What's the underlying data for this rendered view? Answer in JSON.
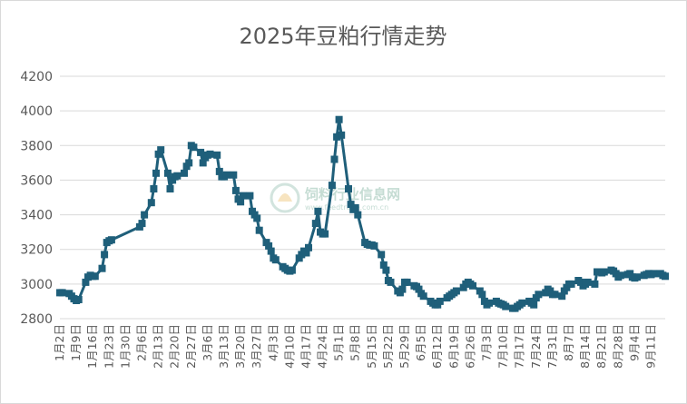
{
  "chart_data": {
    "type": "line",
    "title": "2025年豆粕行情走势",
    "xlabel": "",
    "ylabel": "",
    "ylim": [
      2800,
      4200
    ],
    "yticks": [
      2800,
      3000,
      3200,
      3400,
      3600,
      3800,
      4000,
      4200
    ],
    "grid": "horizontal",
    "legend": "none",
    "line_color": "#1f5f7a",
    "marker": "square",
    "x_tick_labels": [
      "1月2日",
      "1月9日",
      "1月16日",
      "1月23日",
      "1月30日",
      "2月6日",
      "2月13日",
      "2月20日",
      "2月27日",
      "3月6日",
      "3月13日",
      "3月20日",
      "3月27日",
      "4月3日",
      "4月10日",
      "4月17日",
      "4月24日",
      "5月1日",
      "5月8日",
      "5月15日",
      "5月22日",
      "5月29日",
      "6月5日",
      "6月12日",
      "6月19日",
      "6月26日",
      "7月3日",
      "7月10日",
      "7月17日",
      "7月24日",
      "7月31日",
      "8月7日",
      "8月14日",
      "8月21日",
      "8月28日",
      "9月4日",
      "9月11日"
    ],
    "x_start": "2025-01-02",
    "x_end": "2025-09-17",
    "points": [
      [
        "2025-01-02",
        2950
      ],
      [
        "2025-01-03",
        2950
      ],
      [
        "2025-01-06",
        2945
      ],
      [
        "2025-01-07",
        2930
      ],
      [
        "2025-01-08",
        2915
      ],
      [
        "2025-01-09",
        2905
      ],
      [
        "2025-01-10",
        2910
      ],
      [
        "2025-01-13",
        3010
      ],
      [
        "2025-01-14",
        3040
      ],
      [
        "2025-01-15",
        3050
      ],
      [
        "2025-01-16",
        3045
      ],
      [
        "2025-01-17",
        3045
      ],
      [
        "2025-01-20",
        3090
      ],
      [
        "2025-01-21",
        3170
      ],
      [
        "2025-01-22",
        3240
      ],
      [
        "2025-01-23",
        3250
      ],
      [
        "2025-01-24",
        3255
      ],
      [
        "2025-02-05",
        3330
      ],
      [
        "2025-02-06",
        3350
      ],
      [
        "2025-02-07",
        3400
      ],
      [
        "2025-02-10",
        3470
      ],
      [
        "2025-02-11",
        3550
      ],
      [
        "2025-02-12",
        3640
      ],
      [
        "2025-02-13",
        3750
      ],
      [
        "2025-02-14",
        3775
      ],
      [
        "2025-02-17",
        3640
      ],
      [
        "2025-02-18",
        3550
      ],
      [
        "2025-02-19",
        3600
      ],
      [
        "2025-02-20",
        3620
      ],
      [
        "2025-02-21",
        3625
      ],
      [
        "2025-02-24",
        3640
      ],
      [
        "2025-02-25",
        3680
      ],
      [
        "2025-02-26",
        3700
      ],
      [
        "2025-02-27",
        3800
      ],
      [
        "2025-02-28",
        3790
      ],
      [
        "2025-03-03",
        3760
      ],
      [
        "2025-03-04",
        3700
      ],
      [
        "2025-03-05",
        3730
      ],
      [
        "2025-03-06",
        3745
      ],
      [
        "2025-03-07",
        3750
      ],
      [
        "2025-03-10",
        3745
      ],
      [
        "2025-03-11",
        3650
      ],
      [
        "2025-03-12",
        3620
      ],
      [
        "2025-03-13",
        3620
      ],
      [
        "2025-03-14",
        3630
      ],
      [
        "2025-03-17",
        3630
      ],
      [
        "2025-03-18",
        3540
      ],
      [
        "2025-03-19",
        3490
      ],
      [
        "2025-03-20",
        3475
      ],
      [
        "2025-03-21",
        3510
      ],
      [
        "2025-03-24",
        3510
      ],
      [
        "2025-03-25",
        3420
      ],
      [
        "2025-03-26",
        3400
      ],
      [
        "2025-03-27",
        3380
      ],
      [
        "2025-03-28",
        3310
      ],
      [
        "2025-03-31",
        3240
      ],
      [
        "2025-04-01",
        3220
      ],
      [
        "2025-04-02",
        3190
      ],
      [
        "2025-04-03",
        3150
      ],
      [
        "2025-04-04",
        3140
      ],
      [
        "2025-04-07",
        3100
      ],
      [
        "2025-04-08",
        3090
      ],
      [
        "2025-04-09",
        3080
      ],
      [
        "2025-04-10",
        3075
      ],
      [
        "2025-04-11",
        3080
      ],
      [
        "2025-04-14",
        3150
      ],
      [
        "2025-04-15",
        3170
      ],
      [
        "2025-04-16",
        3190
      ],
      [
        "2025-04-17",
        3180
      ],
      [
        "2025-04-18",
        3210
      ],
      [
        "2025-04-21",
        3350
      ],
      [
        "2025-04-22",
        3420
      ],
      [
        "2025-04-23",
        3300
      ],
      [
        "2025-04-24",
        3290
      ],
      [
        "2025-04-25",
        3290
      ],
      [
        "2025-04-28",
        3570
      ],
      [
        "2025-04-29",
        3720
      ],
      [
        "2025-04-30",
        3850
      ],
      [
        "2025-05-01",
        3950
      ],
      [
        "2025-05-02",
        3860
      ],
      [
        "2025-05-05",
        3550
      ],
      [
        "2025-05-06",
        3460
      ],
      [
        "2025-05-07",
        3430
      ],
      [
        "2025-05-08",
        3440
      ],
      [
        "2025-05-09",
        3400
      ],
      [
        "2025-05-12",
        3240
      ],
      [
        "2025-05-13",
        3230
      ],
      [
        "2025-05-14",
        3225
      ],
      [
        "2025-05-15",
        3225
      ],
      [
        "2025-05-16",
        3220
      ],
      [
        "2025-05-19",
        3170
      ],
      [
        "2025-05-20",
        3110
      ],
      [
        "2025-05-21",
        3080
      ],
      [
        "2025-05-22",
        3020
      ],
      [
        "2025-05-23",
        3010
      ],
      [
        "2025-05-26",
        2960
      ],
      [
        "2025-05-27",
        2950
      ],
      [
        "2025-05-28",
        2970
      ],
      [
        "2025-05-29",
        3010
      ],
      [
        "2025-05-30",
        3010
      ],
      [
        "2025-06-02",
        2990
      ],
      [
        "2025-06-03",
        2985
      ],
      [
        "2025-06-04",
        2970
      ],
      [
        "2025-06-05",
        2945
      ],
      [
        "2025-06-06",
        2930
      ],
      [
        "2025-06-09",
        2900
      ],
      [
        "2025-06-10",
        2890
      ],
      [
        "2025-06-11",
        2880
      ],
      [
        "2025-06-12",
        2880
      ],
      [
        "2025-06-13",
        2900
      ],
      [
        "2025-06-16",
        2920
      ],
      [
        "2025-06-17",
        2930
      ],
      [
        "2025-06-18",
        2940
      ],
      [
        "2025-06-19",
        2950
      ],
      [
        "2025-06-20",
        2960
      ],
      [
        "2025-06-23",
        2980
      ],
      [
        "2025-06-24",
        3000
      ],
      [
        "2025-06-25",
        3010
      ],
      [
        "2025-06-26",
        3000
      ],
      [
        "2025-06-27",
        2990
      ],
      [
        "2025-06-30",
        2960
      ],
      [
        "2025-07-01",
        2940
      ],
      [
        "2025-07-02",
        2900
      ],
      [
        "2025-07-03",
        2880
      ],
      [
        "2025-07-04",
        2890
      ],
      [
        "2025-07-07",
        2900
      ],
      [
        "2025-07-08",
        2890
      ],
      [
        "2025-07-09",
        2885
      ],
      [
        "2025-07-10",
        2880
      ],
      [
        "2025-07-11",
        2870
      ],
      [
        "2025-07-14",
        2860
      ],
      [
        "2025-07-15",
        2860
      ],
      [
        "2025-07-16",
        2870
      ],
      [
        "2025-07-17",
        2880
      ],
      [
        "2025-07-18",
        2890
      ],
      [
        "2025-07-21",
        2900
      ],
      [
        "2025-07-22",
        2890
      ],
      [
        "2025-07-23",
        2880
      ],
      [
        "2025-07-24",
        2920
      ],
      [
        "2025-07-25",
        2940
      ],
      [
        "2025-07-28",
        2950
      ],
      [
        "2025-07-29",
        2970
      ],
      [
        "2025-07-30",
        2960
      ],
      [
        "2025-07-31",
        2940
      ],
      [
        "2025-08-01",
        2940
      ],
      [
        "2025-08-04",
        2930
      ],
      [
        "2025-08-05",
        2960
      ],
      [
        "2025-08-06",
        2980
      ],
      [
        "2025-08-07",
        3000
      ],
      [
        "2025-08-08",
        3000
      ],
      [
        "2025-08-11",
        3020
      ],
      [
        "2025-08-12",
        3010
      ],
      [
        "2025-08-13",
        2990
      ],
      [
        "2025-08-14",
        3000
      ],
      [
        "2025-08-15",
        3010
      ],
      [
        "2025-08-18",
        3000
      ],
      [
        "2025-08-19",
        3070
      ],
      [
        "2025-08-20",
        3070
      ],
      [
        "2025-08-21",
        3065
      ],
      [
        "2025-08-22",
        3070
      ],
      [
        "2025-08-25",
        3080
      ],
      [
        "2025-08-26",
        3075
      ],
      [
        "2025-08-27",
        3060
      ],
      [
        "2025-08-28",
        3040
      ],
      [
        "2025-08-29",
        3050
      ],
      [
        "2025-09-01",
        3055
      ],
      [
        "2025-09-02",
        3060
      ],
      [
        "2025-09-03",
        3040
      ],
      [
        "2025-09-04",
        3035
      ],
      [
        "2025-09-05",
        3040
      ],
      [
        "2025-09-08",
        3050
      ],
      [
        "2025-09-09",
        3055
      ],
      [
        "2025-09-10",
        3060
      ],
      [
        "2025-09-11",
        3055
      ],
      [
        "2025-09-12",
        3060
      ],
      [
        "2025-09-15",
        3060
      ],
      [
        "2025-09-16",
        3050
      ],
      [
        "2025-09-17",
        3045
      ]
    ]
  },
  "watermark": {
    "main": "饲料行业信息网",
    "url": "www.feedtrade.com.cn"
  }
}
